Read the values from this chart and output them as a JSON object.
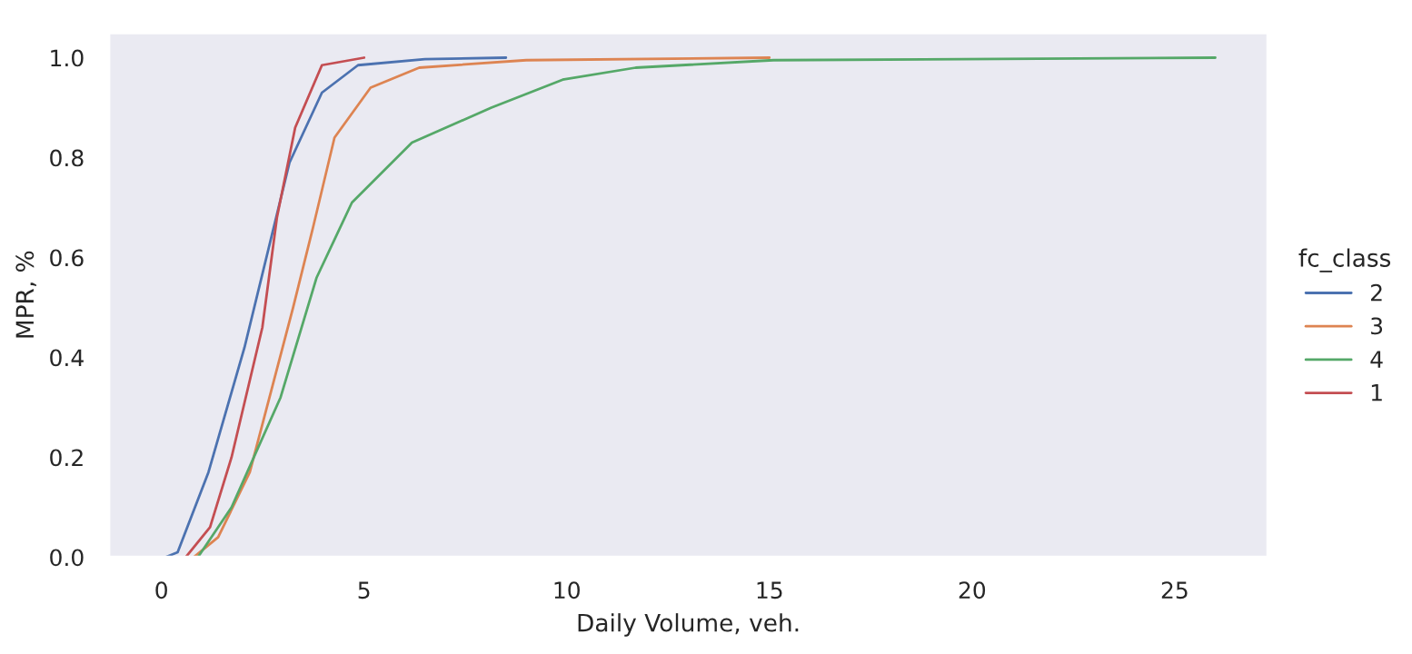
{
  "chart_data": {
    "type": "line",
    "xlabel": "Daily Volume, veh.",
    "ylabel": "MPR, %",
    "legend_title": "fc_class",
    "legend": "right",
    "grid": false,
    "xlim": [
      -1.3,
      27.3
    ],
    "ylim": [
      0,
      1.05
    ],
    "xticks": [
      0,
      5,
      10,
      15,
      20,
      25
    ],
    "yticks": [
      {
        "value": 0,
        "label": "0.0"
      },
      {
        "value": 0.2,
        "label": "0.2"
      },
      {
        "value": 0.4,
        "label": "0.4"
      },
      {
        "value": 0.6,
        "label": "0.6"
      },
      {
        "value": 0.8,
        "label": "0.8"
      },
      {
        "value": 1.0,
        "label": "1.0"
      }
    ],
    "series": [
      {
        "name": "2",
        "color": "#4c72b0",
        "x": [
          0.1,
          0.4,
          1.16,
          2.05,
          2.8,
          3.16,
          3.96,
          4.85,
          6.5,
          8.5
        ],
        "values": [
          0,
          0.01,
          0.17,
          0.42,
          0.67,
          0.79,
          0.93,
          0.985,
          0.997,
          1.0
        ]
      },
      {
        "name": "3",
        "color": "#dd8452",
        "x": [
          0.8,
          1.4,
          2.18,
          3.25,
          3.74,
          4.27,
          5.16,
          6.36,
          9.0,
          15.0
        ],
        "values": [
          0,
          0.04,
          0.17,
          0.5,
          0.66,
          0.84,
          0.94,
          0.98,
          0.995,
          1.0
        ]
      },
      {
        "name": "4",
        "color": "#55a868",
        "x": [
          0.9,
          1.73,
          2.94,
          3.83,
          4.7,
          6.18,
          8.14,
          9.9,
          11.7,
          15.1,
          26.0
        ],
        "values": [
          0,
          0.1,
          0.32,
          0.56,
          0.71,
          0.83,
          0.9,
          0.956,
          0.98,
          0.995,
          1.0
        ]
      },
      {
        "name": "1",
        "color": "#c44e52",
        "x": [
          0.6,
          1.2,
          1.73,
          2.49,
          2.85,
          3.3,
          3.96,
          5.0
        ],
        "values": [
          0,
          0.06,
          0.2,
          0.46,
          0.68,
          0.86,
          0.985,
          1.0
        ]
      }
    ]
  }
}
